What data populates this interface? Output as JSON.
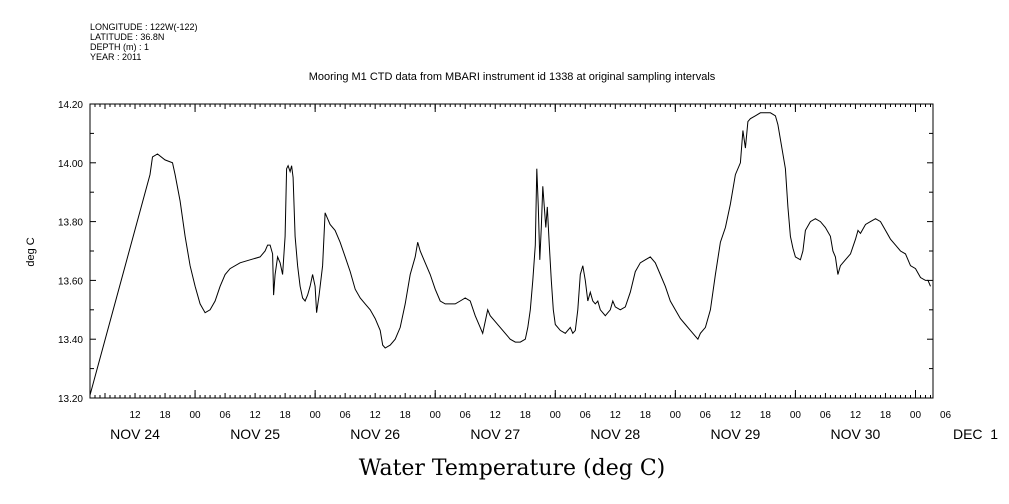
{
  "header": {
    "longitude": "LONGITUDE : 122W(-122)",
    "latitude": "LATITUDE : 36.8N",
    "depth": "DEPTH (m) : 1",
    "year": "YEAR : 2011"
  },
  "chart_data": {
    "type": "line",
    "title": "Mooring M1 CTD data from MBARI instrument id 1338 at original sampling intervals",
    "xlabel": "Water Temperature (deg C)",
    "ylabel": "deg C",
    "ylim": [
      13.2,
      14.2
    ],
    "y_ticks": [
      "13.20",
      "13.40",
      "13.60",
      "13.80",
      "14.00",
      "14.20"
    ],
    "x_unit": "hours since NOV 24 00:00",
    "xlim": [
      3,
      171.5
    ],
    "hour_ticks": [
      {
        "h": 12,
        "label": "12"
      },
      {
        "h": 18,
        "label": "18"
      },
      {
        "h": 24,
        "label": "00"
      },
      {
        "h": 30,
        "label": "06"
      },
      {
        "h": 36,
        "label": "12"
      },
      {
        "h": 42,
        "label": "18"
      },
      {
        "h": 48,
        "label": "00"
      },
      {
        "h": 54,
        "label": "06"
      },
      {
        "h": 60,
        "label": "12"
      },
      {
        "h": 66,
        "label": "18"
      },
      {
        "h": 72,
        "label": "00"
      },
      {
        "h": 78,
        "label": "06"
      },
      {
        "h": 84,
        "label": "12"
      },
      {
        "h": 90,
        "label": "18"
      },
      {
        "h": 96,
        "label": "00"
      },
      {
        "h": 102,
        "label": "06"
      },
      {
        "h": 108,
        "label": "12"
      },
      {
        "h": 114,
        "label": "18"
      },
      {
        "h": 120,
        "label": "00"
      },
      {
        "h": 126,
        "label": "06"
      },
      {
        "h": 132,
        "label": "12"
      },
      {
        "h": 138,
        "label": "18"
      },
      {
        "h": 144,
        "label": "00"
      },
      {
        "h": 150,
        "label": "06"
      },
      {
        "h": 156,
        "label": "12"
      },
      {
        "h": 162,
        "label": "18"
      },
      {
        "h": 168,
        "label": "00"
      },
      {
        "h": 174,
        "label": "06"
      }
    ],
    "day_labels": [
      {
        "h": 12,
        "label": "NOV 24"
      },
      {
        "h": 36,
        "label": "NOV 25"
      },
      {
        "h": 60,
        "label": "NOV 26"
      },
      {
        "h": 84,
        "label": "NOV 27"
      },
      {
        "h": 108,
        "label": "NOV 28"
      },
      {
        "h": 132,
        "label": "NOV 29"
      },
      {
        "h": 156,
        "label": "NOV 30"
      },
      {
        "h": 180,
        "label": "DEC  1"
      }
    ],
    "series": [
      {
        "values": [
          [
            3,
            13.21
          ],
          [
            15,
            13.96
          ],
          [
            15.5,
            14.02
          ],
          [
            16.5,
            14.03
          ],
          [
            18,
            14.01
          ],
          [
            19.5,
            14.0
          ],
          [
            20,
            13.96
          ],
          [
            21,
            13.87
          ],
          [
            22,
            13.75
          ],
          [
            23,
            13.65
          ],
          [
            24,
            13.58
          ],
          [
            25,
            13.52
          ],
          [
            26,
            13.49
          ],
          [
            27,
            13.5
          ],
          [
            28,
            13.53
          ],
          [
            29,
            13.58
          ],
          [
            30,
            13.62
          ],
          [
            31,
            13.64
          ],
          [
            33,
            13.66
          ],
          [
            35,
            13.67
          ],
          [
            37,
            13.68
          ],
          [
            38,
            13.7
          ],
          [
            38.5,
            13.72
          ],
          [
            39,
            13.72
          ],
          [
            39.5,
            13.69
          ],
          [
            39.7,
            13.55
          ],
          [
            40,
            13.62
          ],
          [
            40.5,
            13.68
          ],
          [
            41,
            13.66
          ],
          [
            41.5,
            13.62
          ],
          [
            42,
            13.75
          ],
          [
            42.3,
            13.98
          ],
          [
            42.6,
            13.99
          ],
          [
            43,
            13.97
          ],
          [
            43.3,
            13.99
          ],
          [
            43.6,
            13.95
          ],
          [
            44,
            13.75
          ],
          [
            44.5,
            13.65
          ],
          [
            45,
            13.58
          ],
          [
            45.5,
            13.54
          ],
          [
            46,
            13.53
          ],
          [
            46.5,
            13.55
          ],
          [
            47,
            13.58
          ],
          [
            47.5,
            13.62
          ],
          [
            48,
            13.58
          ],
          [
            48.3,
            13.49
          ],
          [
            48.8,
            13.55
          ],
          [
            49.5,
            13.65
          ],
          [
            50,
            13.83
          ],
          [
            50.5,
            13.81
          ],
          [
            51,
            13.79
          ],
          [
            52,
            13.77
          ],
          [
            53,
            13.73
          ],
          [
            54,
            13.68
          ],
          [
            55,
            13.63
          ],
          [
            56,
            13.57
          ],
          [
            57,
            13.54
          ],
          [
            58,
            13.52
          ],
          [
            59,
            13.5
          ],
          [
            60,
            13.47
          ],
          [
            61,
            13.43
          ],
          [
            61.5,
            13.38
          ],
          [
            62,
            13.37
          ],
          [
            63,
            13.38
          ],
          [
            64,
            13.4
          ],
          [
            65,
            13.44
          ],
          [
            66,
            13.52
          ],
          [
            67,
            13.62
          ],
          [
            68,
            13.68
          ],
          [
            68.5,
            13.73
          ],
          [
            69,
            13.7
          ],
          [
            70,
            13.66
          ],
          [
            71,
            13.62
          ],
          [
            72,
            13.57
          ],
          [
            73,
            13.53
          ],
          [
            74,
            13.52
          ],
          [
            76,
            13.52
          ],
          [
            77,
            13.53
          ],
          [
            78,
            13.54
          ],
          [
            79,
            13.53
          ],
          [
            80,
            13.48
          ],
          [
            81,
            13.44
          ],
          [
            81.5,
            13.42
          ],
          [
            82,
            13.46
          ],
          [
            82.5,
            13.5
          ],
          [
            83,
            13.48
          ],
          [
            84,
            13.46
          ],
          [
            85,
            13.44
          ],
          [
            86,
            13.42
          ],
          [
            87,
            13.4
          ],
          [
            88,
            13.39
          ],
          [
            89,
            13.39
          ],
          [
            90,
            13.4
          ],
          [
            90.5,
            13.44
          ],
          [
            91,
            13.5
          ],
          [
            91.5,
            13.6
          ],
          [
            92,
            13.72
          ],
          [
            92.3,
            13.98
          ],
          [
            92.6,
            13.85
          ],
          [
            92.9,
            13.67
          ],
          [
            93.2,
            13.78
          ],
          [
            93.5,
            13.92
          ],
          [
            93.8,
            13.85
          ],
          [
            94.1,
            13.78
          ],
          [
            94.4,
            13.85
          ],
          [
            94.8,
            13.72
          ],
          [
            95.2,
            13.6
          ],
          [
            95.6,
            13.5
          ],
          [
            96,
            13.45
          ],
          [
            97,
            13.43
          ],
          [
            98,
            13.42
          ],
          [
            99,
            13.44
          ],
          [
            99.5,
            13.42
          ],
          [
            100,
            13.43
          ],
          [
            100.5,
            13.5
          ],
          [
            101,
            13.62
          ],
          [
            101.5,
            13.65
          ],
          [
            102,
            13.6
          ],
          [
            102.5,
            13.53
          ],
          [
            103,
            13.56
          ],
          [
            103.5,
            13.53
          ],
          [
            104,
            13.52
          ],
          [
            104.5,
            13.53
          ],
          [
            105,
            13.5
          ],
          [
            106,
            13.48
          ],
          [
            107,
            13.5
          ],
          [
            107.5,
            13.53
          ],
          [
            108,
            13.51
          ],
          [
            109,
            13.5
          ],
          [
            110,
            13.51
          ],
          [
            111,
            13.56
          ],
          [
            112,
            13.63
          ],
          [
            113,
            13.66
          ],
          [
            114,
            13.67
          ],
          [
            115,
            13.68
          ],
          [
            116,
            13.66
          ],
          [
            117,
            13.62
          ],
          [
            118,
            13.58
          ],
          [
            119,
            13.53
          ],
          [
            120,
            13.5
          ],
          [
            121,
            13.47
          ],
          [
            122,
            13.45
          ],
          [
            123,
            13.43
          ],
          [
            124,
            13.41
          ],
          [
            124.5,
            13.4
          ],
          [
            125,
            13.42
          ],
          [
            126,
            13.44
          ],
          [
            127,
            13.5
          ],
          [
            128,
            13.62
          ],
          [
            129,
            13.73
          ],
          [
            130,
            13.78
          ],
          [
            131,
            13.86
          ],
          [
            132,
            13.96
          ],
          [
            133,
            14.0
          ],
          [
            133.5,
            14.11
          ],
          [
            134,
            14.05
          ],
          [
            134.5,
            14.14
          ],
          [
            135,
            14.15
          ],
          [
            136,
            14.16
          ],
          [
            137,
            14.17
          ],
          [
            138,
            14.17
          ],
          [
            139,
            14.17
          ],
          [
            140,
            14.16
          ],
          [
            140.5,
            14.13
          ],
          [
            141,
            14.08
          ],
          [
            142,
            13.98
          ],
          [
            142.5,
            13.85
          ],
          [
            143,
            13.75
          ],
          [
            143.5,
            13.71
          ],
          [
            144,
            13.68
          ],
          [
            145,
            13.67
          ],
          [
            145.5,
            13.7
          ],
          [
            146,
            13.77
          ],
          [
            147,
            13.8
          ],
          [
            148,
            13.81
          ],
          [
            149,
            13.8
          ],
          [
            150,
            13.78
          ],
          [
            151,
            13.75
          ],
          [
            151.5,
            13.7
          ],
          [
            152,
            13.68
          ],
          [
            152.5,
            13.62
          ],
          [
            153,
            13.65
          ],
          [
            154,
            13.67
          ],
          [
            155,
            13.69
          ],
          [
            156,
            13.74
          ],
          [
            156.5,
            13.77
          ],
          [
            157,
            13.76
          ],
          [
            158,
            13.79
          ],
          [
            159,
            13.8
          ],
          [
            160,
            13.81
          ],
          [
            161,
            13.8
          ],
          [
            162,
            13.77
          ],
          [
            163,
            13.74
          ],
          [
            164,
            13.72
          ],
          [
            165,
            13.7
          ],
          [
            166,
            13.69
          ],
          [
            167,
            13.65
          ],
          [
            168,
            13.64
          ],
          [
            169,
            13.61
          ],
          [
            170,
            13.6
          ],
          [
            170.5,
            13.6
          ],
          [
            171,
            13.58
          ]
        ]
      }
    ]
  }
}
